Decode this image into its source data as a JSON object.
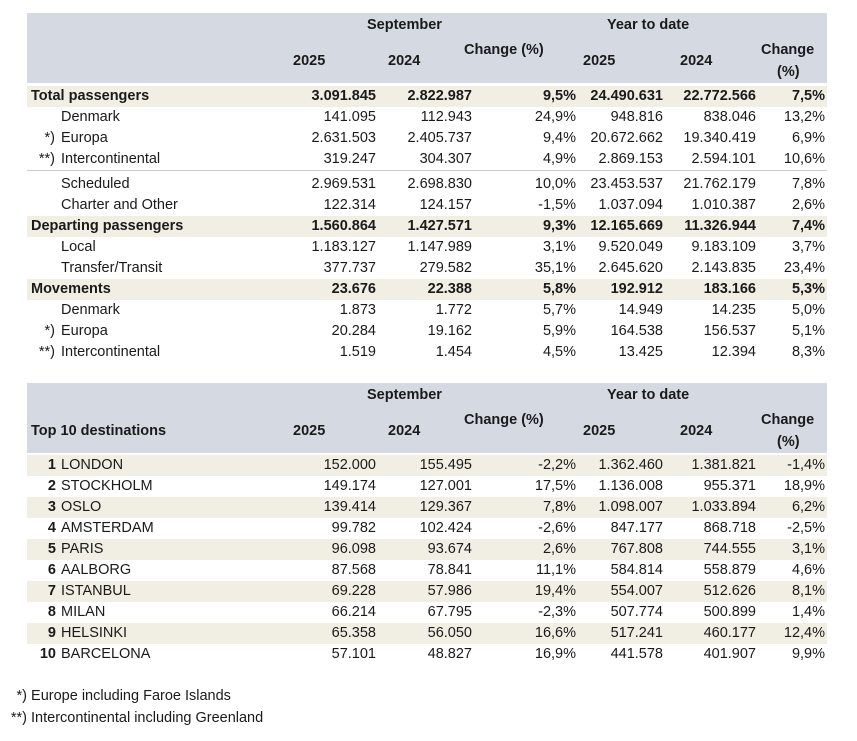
{
  "header": {
    "september": "September",
    "ytd": "Year to date",
    "y2025": "2025",
    "y2024": "2024",
    "change": "Change (%)",
    "change_l1": "Change",
    "change_l2": "(%)",
    "top10_title": "Top 10 destinations"
  },
  "rows": [
    {
      "mark": "",
      "label": "Total passengers",
      "s25": "3.091.845",
      "s24": "2.822.987",
      "sch": "9,5%",
      "y25": "24.490.631",
      "y24": "22.772.566",
      "ych": "7,5%"
    },
    {
      "mark": "",
      "label": "Denmark",
      "s25": "141.095",
      "s24": "112.943",
      "sch": "24,9%",
      "y25": "948.816",
      "y24": "838.046",
      "ych": "13,2%"
    },
    {
      "mark": "*)",
      "label": "Europa",
      "s25": "2.631.503",
      "s24": "2.405.737",
      "sch": "9,4%",
      "y25": "20.672.662",
      "y24": "19.340.419",
      "ych": "6,9%"
    },
    {
      "mark": "**)",
      "label": "Intercontinental",
      "s25": "319.247",
      "s24": "304.307",
      "sch": "4,9%",
      "y25": "2.869.153",
      "y24": "2.594.101",
      "ych": "10,6%"
    },
    {
      "mark": "",
      "label": "Scheduled",
      "s25": "2.969.531",
      "s24": "2.698.830",
      "sch": "10,0%",
      "y25": "23.453.537",
      "y24": "21.762.179",
      "ych": "7,8%"
    },
    {
      "mark": "",
      "label": "Charter and Other",
      "s25": "122.314",
      "s24": "124.157",
      "sch": "-1,5%",
      "y25": "1.037.094",
      "y24": "1.010.387",
      "ych": "2,6%"
    },
    {
      "mark": "",
      "label": "Departing passengers",
      "s25": "1.560.864",
      "s24": "1.427.571",
      "sch": "9,3%",
      "y25": "12.165.669",
      "y24": "11.326.944",
      "ych": "7,4%"
    },
    {
      "mark": "",
      "label": "Local",
      "s25": "1.183.127",
      "s24": "1.147.989",
      "sch": "3,1%",
      "y25": "9.520.049",
      "y24": "9.183.109",
      "ych": "3,7%"
    },
    {
      "mark": "",
      "label": "Transfer/Transit",
      "s25": "377.737",
      "s24": "279.582",
      "sch": "35,1%",
      "y25": "2.645.620",
      "y24": "2.143.835",
      "ych": "23,4%"
    },
    {
      "mark": "",
      "label": "Movements",
      "s25": "23.676",
      "s24": "22.388",
      "sch": "5,8%",
      "y25": "192.912",
      "y24": "183.166",
      "ych": "5,3%"
    },
    {
      "mark": "",
      "label": "Denmark",
      "s25": "1.873",
      "s24": "1.772",
      "sch": "5,7%",
      "y25": "14.949",
      "y24": "14.235",
      "ych": "5,0%"
    },
    {
      "mark": "*)",
      "label": "Europa",
      "s25": "20.284",
      "s24": "19.162",
      "sch": "5,9%",
      "y25": "164.538",
      "y24": "156.537",
      "ych": "5,1%"
    },
    {
      "mark": "**)",
      "label": "Intercontinental",
      "s25": "1.519",
      "s24": "1.454",
      "sch": "4,5%",
      "y25": "13.425",
      "y24": "12.394",
      "ych": "8,3%"
    }
  ],
  "destinations": [
    {
      "rank": "1",
      "city": "LONDON",
      "s25": "152.000",
      "s24": "155.495",
      "sch": "-2,2%",
      "y25": "1.362.460",
      "y24": "1.381.821",
      "ych": "-1,4%"
    },
    {
      "rank": "2",
      "city": "STOCKHOLM",
      "s25": "149.174",
      "s24": "127.001",
      "sch": "17,5%",
      "y25": "1.136.008",
      "y24": "955.371",
      "ych": "18,9%"
    },
    {
      "rank": "3",
      "city": "OSLO",
      "s25": "139.414",
      "s24": "129.367",
      "sch": "7,8%",
      "y25": "1.098.007",
      "y24": "1.033.894",
      "ych": "6,2%"
    },
    {
      "rank": "4",
      "city": "AMSTERDAM",
      "s25": "99.782",
      "s24": "102.424",
      "sch": "-2,6%",
      "y25": "847.177",
      "y24": "868.718",
      "ych": "-2,5%"
    },
    {
      "rank": "5",
      "city": "PARIS",
      "s25": "96.098",
      "s24": "93.674",
      "sch": "2,6%",
      "y25": "767.808",
      "y24": "744.555",
      "ych": "3,1%"
    },
    {
      "rank": "6",
      "city": "AALBORG",
      "s25": "87.568",
      "s24": "78.841",
      "sch": "11,1%",
      "y25": "584.814",
      "y24": "558.879",
      "ych": "4,6%"
    },
    {
      "rank": "7",
      "city": "ISTANBUL",
      "s25": "69.228",
      "s24": "57.986",
      "sch": "19,4%",
      "y25": "554.007",
      "y24": "512.626",
      "ych": "8,1%"
    },
    {
      "rank": "8",
      "city": "MILAN",
      "s25": "66.214",
      "s24": "67.795",
      "sch": "-2,3%",
      "y25": "507.774",
      "y24": "500.899",
      "ych": "1,4%"
    },
    {
      "rank": "9",
      "city": "HELSINKI",
      "s25": "65.358",
      "s24": "56.050",
      "sch": "16,6%",
      "y25": "517.241",
      "y24": "460.177",
      "ych": "12,4%"
    },
    {
      "rank": "10",
      "city": "BARCELONA",
      "s25": "57.101",
      "s24": "48.827",
      "sch": "16,9%",
      "y25": "441.578",
      "y24": "401.907",
      "ych": "9,9%"
    }
  ],
  "footnotes": {
    "f1_mark": "*)",
    "f1_text": "Europe including Faroe Islands",
    "f2_mark": "**)",
    "f2_text": "Intercontinental including Greenland"
  },
  "colors": {
    "header_bg": "#d5dae2",
    "highlight_bg": "#f1efe4"
  }
}
